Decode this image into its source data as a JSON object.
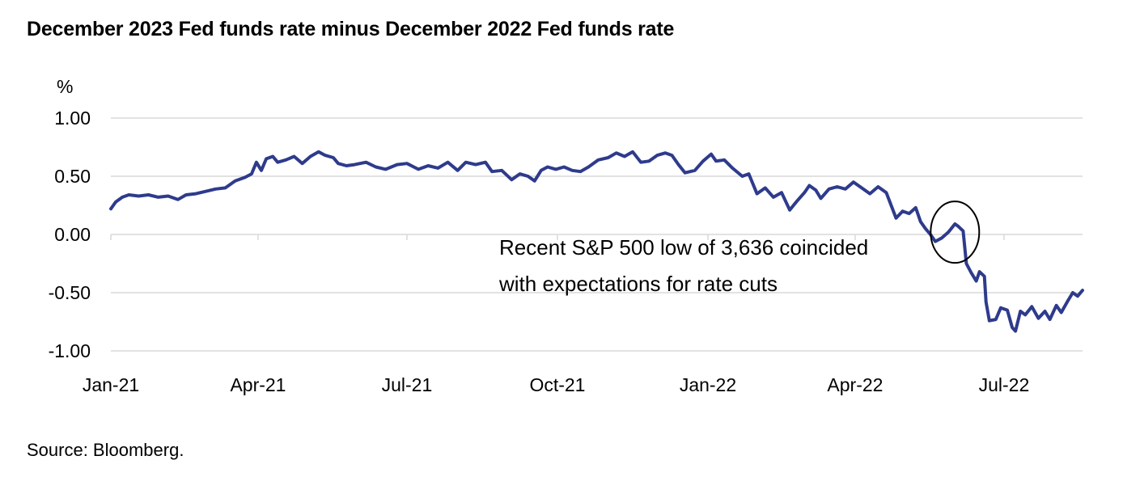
{
  "title": "December 2023 Fed funds rate minus December 2022 Fed funds rate",
  "source": "Source: Bloomberg.",
  "colors": {
    "line": "#2e3b8c",
    "grid": "#d9d9d9",
    "background": "#ffffff",
    "text": "#000000"
  },
  "chart_data": {
    "type": "line",
    "title": "December 2023 Fed funds rate minus December 2022 Fed funds rate",
    "xlabel": "",
    "ylabel": "%",
    "ylim": [
      -1.0,
      1.0
    ],
    "yticks": [
      1.0,
      0.5,
      0.0,
      -0.5,
      -1.0
    ],
    "ytick_labels": [
      "1.00",
      "0.50",
      "0.00",
      "-0.50",
      "-1.00"
    ],
    "xlim": [
      "2021-01-01",
      "2022-08-18"
    ],
    "xticks": [
      "2021-01-01",
      "2021-04-01",
      "2021-07-01",
      "2021-10-01",
      "2022-01-01",
      "2022-04-01",
      "2022-07-01"
    ],
    "xtick_labels": [
      "Jan-21",
      "Apr-21",
      "Jul-21",
      "Oct-21",
      "Jan-22",
      "Apr-22",
      "Jul-22"
    ],
    "grid": "horizontal",
    "legend": "none",
    "series": [
      {
        "points": [
          [
            "2021-01-01",
            0.22
          ],
          [
            "2021-01-04",
            0.28
          ],
          [
            "2021-01-08",
            0.32
          ],
          [
            "2021-01-12",
            0.34
          ],
          [
            "2021-01-18",
            0.33
          ],
          [
            "2021-01-24",
            0.34
          ],
          [
            "2021-01-30",
            0.32
          ],
          [
            "2021-02-05",
            0.33
          ],
          [
            "2021-02-11",
            0.3
          ],
          [
            "2021-02-16",
            0.34
          ],
          [
            "2021-02-22",
            0.35
          ],
          [
            "2021-02-28",
            0.37
          ],
          [
            "2021-03-06",
            0.39
          ],
          [
            "2021-03-12",
            0.4
          ],
          [
            "2021-03-18",
            0.46
          ],
          [
            "2021-03-24",
            0.49
          ],
          [
            "2021-03-28",
            0.52
          ],
          [
            "2021-03-31",
            0.62
          ],
          [
            "2021-04-03",
            0.55
          ],
          [
            "2021-04-06",
            0.65
          ],
          [
            "2021-04-10",
            0.67
          ],
          [
            "2021-04-13",
            0.62
          ],
          [
            "2021-04-18",
            0.64
          ],
          [
            "2021-04-23",
            0.67
          ],
          [
            "2021-04-28",
            0.61
          ],
          [
            "2021-05-03",
            0.67
          ],
          [
            "2021-05-08",
            0.71
          ],
          [
            "2021-05-12",
            0.68
          ],
          [
            "2021-05-17",
            0.66
          ],
          [
            "2021-05-20",
            0.61
          ],
          [
            "2021-05-25",
            0.59
          ],
          [
            "2021-05-30",
            0.6
          ],
          [
            "2021-06-06",
            0.62
          ],
          [
            "2021-06-12",
            0.58
          ],
          [
            "2021-06-18",
            0.56
          ],
          [
            "2021-06-25",
            0.6
          ],
          [
            "2021-07-01",
            0.61
          ],
          [
            "2021-07-08",
            0.56
          ],
          [
            "2021-07-14",
            0.59
          ],
          [
            "2021-07-20",
            0.57
          ],
          [
            "2021-07-26",
            0.62
          ],
          [
            "2021-08-01",
            0.55
          ],
          [
            "2021-08-06",
            0.62
          ],
          [
            "2021-08-12",
            0.6
          ],
          [
            "2021-08-18",
            0.62
          ],
          [
            "2021-08-22",
            0.54
          ],
          [
            "2021-08-28",
            0.55
          ],
          [
            "2021-09-03",
            0.47
          ],
          [
            "2021-09-08",
            0.52
          ],
          [
            "2021-09-13",
            0.5
          ],
          [
            "2021-09-17",
            0.46
          ],
          [
            "2021-09-21",
            0.55
          ],
          [
            "2021-09-25",
            0.58
          ],
          [
            "2021-09-30",
            0.56
          ],
          [
            "2021-10-05",
            0.58
          ],
          [
            "2021-10-10",
            0.55
          ],
          [
            "2021-10-15",
            0.54
          ],
          [
            "2021-10-20",
            0.58
          ],
          [
            "2021-10-26",
            0.64
          ],
          [
            "2021-11-01",
            0.66
          ],
          [
            "2021-11-06",
            0.7
          ],
          [
            "2021-11-11",
            0.67
          ],
          [
            "2021-11-16",
            0.71
          ],
          [
            "2021-11-21",
            0.62
          ],
          [
            "2021-11-26",
            0.63
          ],
          [
            "2021-12-01",
            0.68
          ],
          [
            "2021-12-06",
            0.7
          ],
          [
            "2021-12-10",
            0.68
          ],
          [
            "2021-12-14",
            0.6
          ],
          [
            "2021-12-18",
            0.53
          ],
          [
            "2021-12-24",
            0.55
          ],
          [
            "2021-12-29",
            0.63
          ],
          [
            "2022-01-03",
            0.69
          ],
          [
            "2022-01-06",
            0.63
          ],
          [
            "2022-01-11",
            0.64
          ],
          [
            "2022-01-16",
            0.57
          ],
          [
            "2022-01-22",
            0.5
          ],
          [
            "2022-01-26",
            0.52
          ],
          [
            "2022-01-31",
            0.35
          ],
          [
            "2022-02-05",
            0.4
          ],
          [
            "2022-02-10",
            0.32
          ],
          [
            "2022-02-15",
            0.36
          ],
          [
            "2022-02-20",
            0.21
          ],
          [
            "2022-02-24",
            0.28
          ],
          [
            "2022-03-01",
            0.36
          ],
          [
            "2022-03-04",
            0.42
          ],
          [
            "2022-03-08",
            0.38
          ],
          [
            "2022-03-11",
            0.31
          ],
          [
            "2022-03-16",
            0.39
          ],
          [
            "2022-03-21",
            0.41
          ],
          [
            "2022-03-26",
            0.39
          ],
          [
            "2022-03-31",
            0.45
          ],
          [
            "2022-04-05",
            0.4
          ],
          [
            "2022-04-10",
            0.35
          ],
          [
            "2022-04-15",
            0.41
          ],
          [
            "2022-04-20",
            0.36
          ],
          [
            "2022-04-26",
            0.14
          ],
          [
            "2022-04-30",
            0.2
          ],
          [
            "2022-05-04",
            0.18
          ],
          [
            "2022-05-08",
            0.23
          ],
          [
            "2022-05-11",
            0.11
          ],
          [
            "2022-05-14",
            0.05
          ],
          [
            "2022-05-17",
            0.0
          ],
          [
            "2022-05-20",
            -0.06
          ],
          [
            "2022-05-24",
            -0.03
          ],
          [
            "2022-05-28",
            0.02
          ],
          [
            "2022-06-01",
            0.09
          ],
          [
            "2022-06-03",
            0.07
          ],
          [
            "2022-06-06",
            0.03
          ],
          [
            "2022-06-08",
            -0.25
          ],
          [
            "2022-06-11",
            -0.33
          ],
          [
            "2022-06-14",
            -0.4
          ],
          [
            "2022-06-16",
            -0.32
          ],
          [
            "2022-06-19",
            -0.36
          ],
          [
            "2022-06-20",
            -0.58
          ],
          [
            "2022-06-22",
            -0.74
          ],
          [
            "2022-06-26",
            -0.73
          ],
          [
            "2022-06-29",
            -0.63
          ],
          [
            "2022-07-03",
            -0.65
          ],
          [
            "2022-07-06",
            -0.8
          ],
          [
            "2022-07-08",
            -0.83
          ],
          [
            "2022-07-11",
            -0.66
          ],
          [
            "2022-07-14",
            -0.69
          ],
          [
            "2022-07-18",
            -0.62
          ],
          [
            "2022-07-22",
            -0.72
          ],
          [
            "2022-07-26",
            -0.66
          ],
          [
            "2022-07-29",
            -0.73
          ],
          [
            "2022-08-02",
            -0.61
          ],
          [
            "2022-08-05",
            -0.67
          ],
          [
            "2022-08-09",
            -0.57
          ],
          [
            "2022-08-12",
            -0.5
          ],
          [
            "2022-08-15",
            -0.53
          ],
          [
            "2022-08-18",
            -0.48
          ]
        ]
      }
    ],
    "annotations": [
      {
        "text_lines": [
          "Recent S&P 500 low of 3,636 coincided",
          "with expectations for rate cuts"
        ],
        "anchor": [
          "2022-06-01",
          0.02
        ]
      }
    ]
  }
}
